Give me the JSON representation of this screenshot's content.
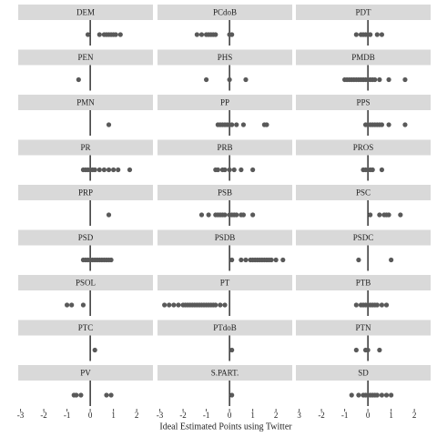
{
  "chart_data": {
    "type": "dot",
    "x_label": "Ideal Estimated Points using Twitter",
    "xlim": [
      -3.1,
      2.7
    ],
    "reference_line": 0,
    "strip_color": "#d9d9d9",
    "point_color": "#595959",
    "columns": [
      {
        "xticks": [
          -3,
          -2,
          -1,
          0,
          1,
          2
        ]
      },
      {
        "xticks": [
          -3,
          -2,
          -1,
          0,
          1,
          2,
          3
        ]
      },
      {
        "xticks": [
          -2,
          -1,
          0,
          1,
          2
        ]
      }
    ],
    "panels": [
      {
        "name": "DEM",
        "values": [
          -0.1,
          0.4,
          0.6,
          0.7,
          0.8,
          0.9,
          1.0,
          1.1,
          1.3
        ]
      },
      {
        "name": "PCdoB",
        "values": [
          -1.4,
          -1.2,
          -1.0,
          -0.9,
          -0.8,
          -0.7,
          -0.6,
          0.0,
          0.1
        ]
      },
      {
        "name": "PDT",
        "values": [
          -0.5,
          -0.3,
          -0.2,
          -0.1,
          0.0,
          0.1,
          0.4,
          0.6
        ]
      },
      {
        "name": "PEN",
        "values": [
          -0.5
        ]
      },
      {
        "name": "PHS",
        "values": [
          -1.0,
          0.0,
          0.7
        ]
      },
      {
        "name": "PMDB",
        "values": [
          -1.0,
          -0.9,
          -0.8,
          -0.7,
          -0.6,
          -0.5,
          -0.4,
          -0.3,
          -0.2,
          -0.1,
          0.0,
          0.1,
          0.2,
          0.3,
          0.5,
          0.9,
          1.6
        ]
      },
      {
        "name": "PMN",
        "values": [
          0.8
        ]
      },
      {
        "name": "PP",
        "values": [
          -0.5,
          -0.4,
          -0.3,
          -0.2,
          -0.1,
          0.0,
          0.1,
          0.3,
          0.6,
          1.5,
          1.6
        ]
      },
      {
        "name": "PPS",
        "values": [
          -0.1,
          0.0,
          0.1,
          0.2,
          0.3,
          0.4,
          0.5,
          0.6,
          0.9,
          1.6
        ]
      },
      {
        "name": "PR",
        "values": [
          -0.3,
          -0.2,
          -0.1,
          0.0,
          0.1,
          0.2,
          0.4,
          0.6,
          0.8,
          1.0,
          1.2,
          1.7
        ]
      },
      {
        "name": "PRB",
        "values": [
          -0.6,
          -0.5,
          -0.3,
          -0.2,
          0.0,
          0.2,
          0.5,
          1.0
        ]
      },
      {
        "name": "PROS",
        "values": [
          -0.2,
          -0.1,
          0.0,
          0.1,
          0.2,
          0.6
        ]
      },
      {
        "name": "PRP",
        "values": [
          0.8
        ]
      },
      {
        "name": "PSB",
        "values": [
          -1.2,
          -0.9,
          -0.6,
          -0.5,
          -0.4,
          -0.3,
          -0.2,
          0.0,
          0.1,
          0.2,
          0.3,
          0.5,
          0.6,
          1.0
        ]
      },
      {
        "name": "PSC",
        "values": [
          0.1,
          0.5,
          0.7,
          0.8,
          0.9,
          1.4
        ]
      },
      {
        "name": "PSD",
        "values": [
          -0.3,
          -0.2,
          -0.1,
          0.0,
          0.1,
          0.2,
          0.3,
          0.4,
          0.5,
          0.6,
          0.7,
          0.8,
          0.9
        ]
      },
      {
        "name": "PSDB",
        "values": [
          0.1,
          0.5,
          0.7,
          0.9,
          1.0,
          1.1,
          1.2,
          1.3,
          1.4,
          1.5,
          1.6,
          1.7,
          1.8,
          2.0,
          2.3
        ]
      },
      {
        "name": "PSDC",
        "values": [
          -0.4,
          1.0
        ]
      },
      {
        "name": "PSOL",
        "values": [
          -1.0,
          -0.8,
          -0.3
        ]
      },
      {
        "name": "PT",
        "values": [
          -2.8,
          -2.6,
          -2.4,
          -2.2,
          -2.0,
          -1.9,
          -1.8,
          -1.7,
          -1.6,
          -1.5,
          -1.4,
          -1.3,
          -1.2,
          -1.1,
          -1.0,
          -0.9,
          -0.8,
          -0.7,
          -0.6,
          -0.4,
          -0.2
        ]
      },
      {
        "name": "PTB",
        "values": [
          -0.5,
          -0.3,
          -0.2,
          -0.1,
          0.0,
          0.1,
          0.2,
          0.3,
          0.4,
          0.6,
          0.8
        ]
      },
      {
        "name": "PTC",
        "values": [
          0.2
        ]
      },
      {
        "name": "PTdoB",
        "values": [
          0.1
        ]
      },
      {
        "name": "PTN",
        "values": [
          -0.5,
          -0.1,
          0.0,
          0.5
        ]
      },
      {
        "name": "PV",
        "values": [
          -0.7,
          -0.6,
          -0.4,
          0.7,
          0.9
        ]
      },
      {
        "name": "S.PART.",
        "values": [
          0.1
        ]
      },
      {
        "name": "SD",
        "values": [
          -0.7,
          -0.4,
          -0.2,
          -0.1,
          0.0,
          0.1,
          0.2,
          0.3,
          0.4,
          0.6,
          0.8,
          1.0
        ]
      }
    ]
  }
}
